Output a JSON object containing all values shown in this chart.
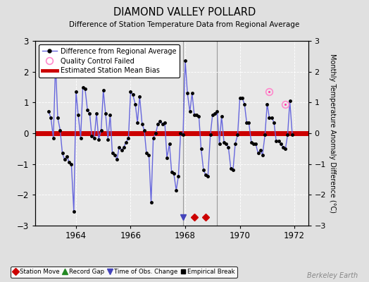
{
  "title": "DIAMOND VALLEY POLLARD",
  "subtitle": "Difference of Station Temperature Data from Regional Average",
  "ylabel_right": "Monthly Temperature Anomaly Difference (°C)",
  "xlim": [
    1962.5,
    1972.5
  ],
  "ylim": [
    -3,
    3
  ],
  "yticks": [
    -3,
    -2,
    -1,
    0,
    1,
    2,
    3
  ],
  "xticks": [
    1964,
    1966,
    1968,
    1970,
    1972
  ],
  "bias_value": 0.0,
  "bg_color": "#e0e0e0",
  "plot_bg_color": "#e8e8e8",
  "line_color": "#6666dd",
  "marker_color": "#000000",
  "bias_color": "#cc0000",
  "grid_color": "#ffffff",
  "vertical_line_color": "#999999",
  "station_move_times": [
    1968.33,
    1968.75
  ],
  "obs_change_time": 1967.92,
  "vertical_lines": [
    1967.92,
    1969.17
  ],
  "qc_failed_times": [
    1971.08,
    1971.67
  ],
  "qc_failed_values": [
    1.35,
    0.95
  ],
  "data_x": [
    1963.0,
    1963.08,
    1963.17,
    1963.25,
    1963.33,
    1963.42,
    1963.5,
    1963.58,
    1963.67,
    1963.75,
    1963.83,
    1963.92,
    1964.0,
    1964.08,
    1964.17,
    1964.25,
    1964.33,
    1964.42,
    1964.5,
    1964.58,
    1964.67,
    1964.75,
    1964.83,
    1964.92,
    1965.0,
    1965.08,
    1965.17,
    1965.25,
    1965.33,
    1965.42,
    1965.5,
    1965.58,
    1965.67,
    1965.75,
    1965.83,
    1965.92,
    1966.0,
    1966.08,
    1966.17,
    1966.25,
    1966.33,
    1966.42,
    1966.5,
    1966.58,
    1966.67,
    1966.75,
    1966.83,
    1966.92,
    1967.0,
    1967.08,
    1967.17,
    1967.25,
    1967.33,
    1967.42,
    1967.5,
    1967.58,
    1967.67,
    1967.75,
    1967.83,
    1967.92,
    1968.0,
    1968.08,
    1968.17,
    1968.25,
    1968.33,
    1968.42,
    1968.5,
    1968.58,
    1968.67,
    1968.75,
    1968.83,
    1968.92,
    1969.0,
    1969.08,
    1969.17,
    1969.25,
    1969.33,
    1969.42,
    1969.5,
    1969.58,
    1969.67,
    1969.75,
    1969.83,
    1969.92,
    1970.0,
    1970.08,
    1970.17,
    1970.25,
    1970.33,
    1970.42,
    1970.5,
    1970.58,
    1970.67,
    1970.75,
    1970.83,
    1970.92,
    1971.0,
    1971.08,
    1971.17,
    1971.25,
    1971.33,
    1971.42,
    1971.5,
    1971.58,
    1971.67,
    1971.75,
    1971.83,
    1971.92
  ],
  "data_y": [
    0.7,
    0.5,
    -0.15,
    2.3,
    0.5,
    0.1,
    -0.65,
    -0.85,
    -0.75,
    -0.95,
    -1.0,
    -2.55,
    1.35,
    0.6,
    -0.15,
    1.5,
    1.45,
    0.75,
    0.65,
    -0.1,
    -0.15,
    0.65,
    -0.2,
    0.1,
    1.4,
    0.65,
    -0.2,
    0.6,
    -0.65,
    -0.7,
    -0.85,
    -0.45,
    -0.55,
    -0.45,
    -0.3,
    -0.15,
    1.35,
    1.25,
    0.95,
    0.35,
    1.2,
    0.3,
    0.1,
    -0.65,
    -0.7,
    -2.25,
    -0.15,
    0.0,
    0.3,
    0.4,
    0.3,
    0.35,
    -0.8,
    -0.35,
    -1.25,
    -1.3,
    -1.85,
    -1.4,
    0.0,
    -0.05,
    2.35,
    1.3,
    0.7,
    1.3,
    0.6,
    0.6,
    0.55,
    -0.5,
    -1.2,
    -1.35,
    -1.4,
    -0.05,
    0.6,
    0.65,
    0.7,
    -0.35,
    0.55,
    -0.3,
    -0.35,
    -0.45,
    -1.15,
    -1.2,
    -0.35,
    -0.05,
    1.15,
    1.15,
    0.95,
    0.35,
    0.35,
    -0.3,
    -0.35,
    -0.35,
    -0.65,
    -0.55,
    -0.7,
    -0.05,
    0.95,
    0.5,
    0.5,
    0.35,
    -0.25,
    -0.25,
    -0.35,
    -0.45,
    -0.5,
    -0.05,
    1.05,
    -0.05
  ],
  "berkeley_earth_text": "Berkeley Earth",
  "footer_color": "#888888"
}
